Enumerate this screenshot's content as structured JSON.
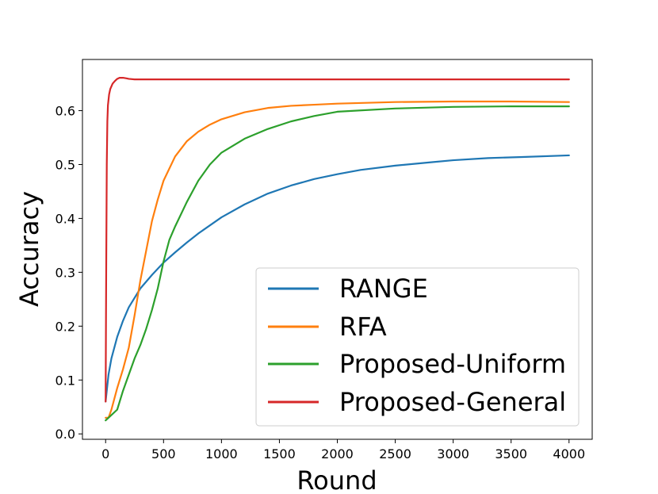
{
  "chart_data": {
    "type": "line",
    "title": "",
    "xlabel": "Round",
    "ylabel": "Accuracy",
    "xlim": [
      -200,
      4200
    ],
    "ylim": [
      -0.01,
      0.695
    ],
    "xticks": [
      0,
      500,
      1000,
      1500,
      2000,
      2500,
      3000,
      3500,
      4000
    ],
    "yticks": [
      0.0,
      0.1,
      0.2,
      0.3,
      0.4,
      0.5,
      0.6
    ],
    "xtick_labels": [
      "0",
      "500",
      "1000",
      "1500",
      "2000",
      "2500",
      "3000",
      "3500",
      "4000"
    ],
    "ytick_labels": [
      "0.0",
      "0.1",
      "0.2",
      "0.3",
      "0.4",
      "0.5",
      "0.6"
    ],
    "grid": false,
    "legend_position": "lower-right",
    "series": [
      {
        "name": "RANGE",
        "color": "#1f77b4",
        "x": [
          0,
          25,
          50,
          100,
          150,
          200,
          300,
          400,
          500,
          600,
          700,
          800,
          1000,
          1200,
          1400,
          1600,
          1800,
          2000,
          2200,
          2500,
          2800,
          3000,
          3300,
          3600,
          4000
        ],
        "y": [
          0.06,
          0.11,
          0.14,
          0.18,
          0.21,
          0.235,
          0.27,
          0.295,
          0.318,
          0.337,
          0.355,
          0.372,
          0.402,
          0.426,
          0.446,
          0.461,
          0.473,
          0.482,
          0.49,
          0.498,
          0.504,
          0.508,
          0.512,
          0.514,
          0.517
        ]
      },
      {
        "name": "RFA",
        "color": "#ff7f0e",
        "x": [
          0,
          25,
          50,
          100,
          150,
          200,
          250,
          300,
          350,
          400,
          450,
          500,
          600,
          700,
          800,
          900,
          1000,
          1200,
          1400,
          1600,
          1800,
          2000,
          2500,
          3000,
          3500,
          4000
        ],
        "y": [
          0.03,
          0.03,
          0.045,
          0.085,
          0.12,
          0.16,
          0.22,
          0.285,
          0.34,
          0.395,
          0.435,
          0.47,
          0.515,
          0.543,
          0.561,
          0.574,
          0.584,
          0.597,
          0.605,
          0.609,
          0.611,
          0.613,
          0.616,
          0.617,
          0.617,
          0.616
        ]
      },
      {
        "name": "Proposed-Uniform",
        "color": "#2ca02c",
        "x": [
          0,
          25,
          50,
          100,
          150,
          200,
          250,
          300,
          350,
          400,
          450,
          500,
          550,
          600,
          700,
          800,
          900,
          1000,
          1200,
          1400,
          1600,
          1800,
          2000,
          2500,
          3000,
          3500,
          4000
        ],
        "y": [
          0.025,
          0.03,
          0.035,
          0.045,
          0.08,
          0.11,
          0.14,
          0.165,
          0.195,
          0.23,
          0.27,
          0.32,
          0.36,
          0.385,
          0.43,
          0.47,
          0.5,
          0.522,
          0.548,
          0.566,
          0.58,
          0.59,
          0.598,
          0.604,
          0.607,
          0.608,
          0.608
        ]
      },
      {
        "name": "Proposed-General",
        "color": "#d62728",
        "x": [
          0,
          5,
          10,
          15,
          20,
          30,
          40,
          60,
          80,
          100,
          120,
          150,
          180,
          200,
          250,
          300,
          500,
          1000,
          2000,
          3000,
          4000
        ],
        "y": [
          0.06,
          0.3,
          0.5,
          0.58,
          0.61,
          0.63,
          0.64,
          0.65,
          0.655,
          0.659,
          0.661,
          0.661,
          0.66,
          0.659,
          0.658,
          0.658,
          0.658,
          0.658,
          0.658,
          0.658,
          0.658
        ]
      }
    ]
  }
}
